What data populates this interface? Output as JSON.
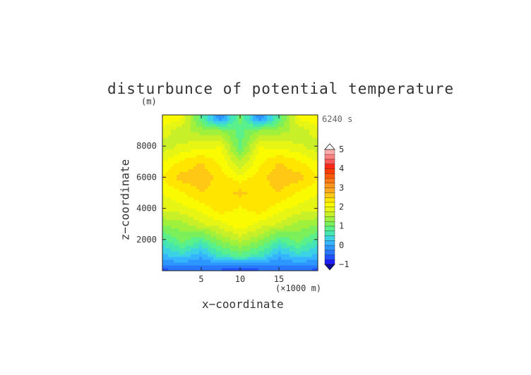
{
  "chart_data": {
    "type": "heatmap",
    "title": "disturbunce of potential temperature",
    "y_unit": "(m)",
    "x_unit": "(×1000 m)",
    "time_label": "6240 s",
    "xlabel": "x−coordinate",
    "ylabel": "z−coordinate",
    "xlim": [
      0,
      20
    ],
    "ylim": [
      0,
      10000
    ],
    "x_ticks": [
      5,
      10,
      15
    ],
    "y_ticks": [
      2000,
      4000,
      6000,
      8000
    ],
    "colorbar": {
      "tick_labels": [
        "5",
        "4",
        "3",
        "2",
        "1",
        "0",
        "−1"
      ],
      "levels": [
        -1.0,
        -0.75,
        -0.5,
        -0.25,
        0.0,
        0.25,
        0.5,
        0.75,
        1.0,
        1.25,
        1.5,
        1.75,
        2.0,
        2.25,
        2.5,
        2.75,
        3.0,
        3.25,
        3.5,
        3.75,
        4.0,
        4.25,
        4.5,
        4.75,
        5.0
      ],
      "colors": [
        "#1e1eff",
        "#2250ff",
        "#2878ff",
        "#2d96ff",
        "#35b4ff",
        "#3cd2e6",
        "#46e6b4",
        "#5af08c",
        "#7cf05a",
        "#a0f03c",
        "#c8f028",
        "#e6f514",
        "#fafa00",
        "#ffe600",
        "#ffc814",
        "#ffaa1e",
        "#ff961e",
        "#ff7814",
        "#ff5a0a",
        "#ff3c00",
        "#ff2814",
        "#ff5a5a",
        "#ff8282",
        "#ffaaaa"
      ]
    },
    "field_grid_x": [
      0,
      2.5,
      5,
      7.5,
      10,
      12.5,
      15,
      17.5,
      20
    ],
    "field_grid_z": [
      0,
      1000,
      2000,
      3000,
      4000,
      5000,
      6000,
      7000,
      8000,
      9000,
      9800
    ],
    "field_values": [
      [
        -0.6,
        -0.5,
        -0.5,
        -0.6,
        -0.9,
        -0.6,
        -0.5,
        -0.5,
        -0.6
      ],
      [
        0.2,
        0.4,
        0.1,
        0.6,
        0.9,
        0.6,
        0.1,
        0.4,
        0.2
      ],
      [
        0.7,
        1.1,
        0.8,
        1.3,
        1.6,
        1.3,
        0.8,
        1.1,
        0.7
      ],
      [
        1.3,
        1.4,
        1.7,
        1.9,
        2.2,
        1.9,
        1.7,
        1.4,
        1.3
      ],
      [
        1.8,
        1.9,
        2.1,
        2.4,
        2.2,
        2.4,
        2.1,
        1.9,
        1.8
      ],
      [
        2.0,
        2.2,
        2.5,
        2.3,
        2.6,
        2.3,
        2.5,
        2.2,
        2.0
      ],
      [
        2.3,
        2.6,
        2.7,
        2.4,
        2.1,
        2.4,
        2.7,
        2.6,
        2.3
      ],
      [
        2.0,
        2.3,
        2.5,
        2.2,
        1.5,
        2.2,
        2.5,
        2.3,
        2.0
      ],
      [
        1.6,
        1.8,
        1.9,
        2.0,
        0.9,
        2.0,
        1.9,
        1.8,
        1.6
      ],
      [
        1.9,
        1.6,
        1.4,
        1.3,
        0.9,
        1.3,
        1.4,
        1.6,
        1.9
      ],
      [
        2.2,
        2.0,
        0.8,
        -0.2,
        1.1,
        -0.2,
        0.8,
        2.0,
        2.2
      ]
    ]
  }
}
